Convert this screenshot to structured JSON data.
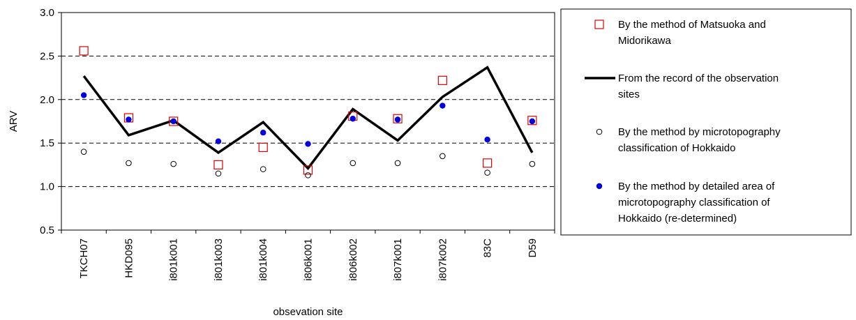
{
  "chart_data": {
    "type": "line",
    "xlabel": "obsevation site",
    "ylabel": "ARV",
    "ylim": [
      0.5,
      3.0
    ],
    "yticks": [
      "0.5",
      "1.0",
      "1.5",
      "2.0",
      "2.5",
      "3.0"
    ],
    "grid": "dashed horizontal at 1.0, 1.5, 2.0, 2.5",
    "legend_position": "right",
    "categories": [
      "TKCH07",
      "HKD095",
      "i801k001",
      "i801k003",
      "i801k004",
      "i806k001",
      "i806k002",
      "i807k001",
      "i807k002",
      "83C",
      "D59"
    ],
    "series": [
      {
        "name": "By the method of Matsuoka and Midorikawa",
        "legend_lines": [
          "By the method of Matsuoka and",
          "Midorikawa"
        ],
        "marker": "open-square",
        "color": "#e00000",
        "values": [
          2.56,
          1.79,
          1.75,
          1.25,
          1.45,
          1.19,
          1.81,
          1.78,
          2.22,
          1.27,
          1.76
        ]
      },
      {
        "name": "From the record of the observation sites",
        "legend_lines": [
          "From the record of the observation",
          "sites"
        ],
        "marker": "line",
        "color": "#000000",
        "values": [
          2.27,
          1.59,
          1.76,
          1.39,
          1.74,
          1.21,
          1.89,
          1.53,
          2.03,
          2.37,
          1.39
        ]
      },
      {
        "name": "By the method by microtopography classification of Hokkaido",
        "legend_lines": [
          "By the method by microtopography",
          "classification of Hokkaido"
        ],
        "marker": "open-circle",
        "color": "#000000",
        "values": [
          1.4,
          1.27,
          1.26,
          1.15,
          1.2,
          1.13,
          1.27,
          1.27,
          1.35,
          1.16,
          1.26
        ]
      },
      {
        "name": "By the method by detailed area of microtopography classification of Hokkaido (re-determined)",
        "legend_lines": [
          "By the method by detailed area of",
          "microtopography classification of",
          "Hokkaido (re-determined)"
        ],
        "marker": "filled-circle",
        "color": "#0000e0",
        "values": [
          2.05,
          1.77,
          1.75,
          1.52,
          1.62,
          1.49,
          1.78,
          1.77,
          1.93,
          1.54,
          1.75
        ]
      }
    ]
  }
}
